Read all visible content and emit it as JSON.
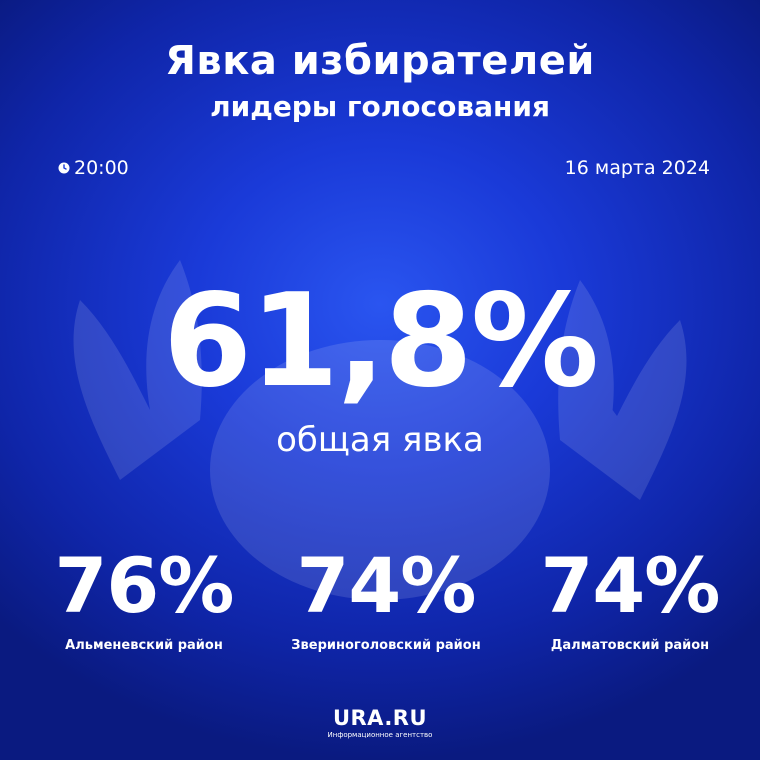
{
  "header": {
    "title": "Явка избирателей",
    "subtitle": "лидеры голосования"
  },
  "meta": {
    "time": "20:00",
    "date": "16 марта 2024",
    "time_icon": "clock-icon"
  },
  "total": {
    "value": "61,8%",
    "label": "общая явка"
  },
  "districts": [
    {
      "value": "76%",
      "name": "Альменевский район"
    },
    {
      "value": "74%",
      "name": "Звериноголовский район"
    },
    {
      "value": "74%",
      "name": "Далматовский район"
    }
  ],
  "logo": {
    "brand": "URA.RU",
    "tagline": "Информационное агентство"
  },
  "colors": {
    "background": "#1a3ad8",
    "text": "#ffffff"
  }
}
